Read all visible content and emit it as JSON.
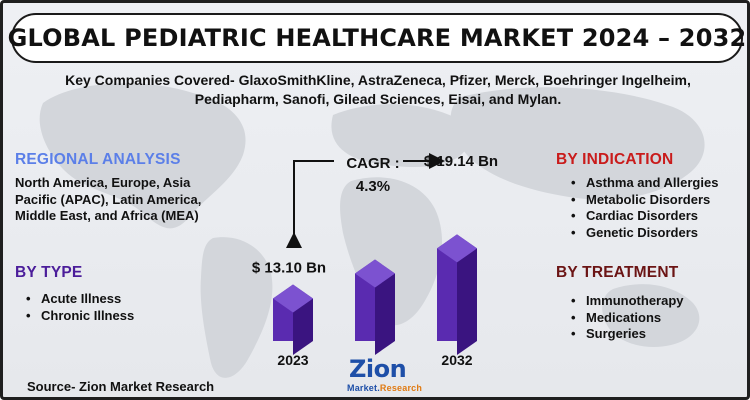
{
  "title": "GLOBAL PEDIATRIC HEALTHCARE MARKET 2024 – 2032",
  "companies": "Key Companies Covered- GlaxoSmithKline, AstraZeneca, Pfizer, Merck, Boehringer Ingelheim, Pediapharm, Sanofi, Gilead Sciences, Eisai, and Mylan.",
  "regional": {
    "heading": "REGIONAL ANALYSIS",
    "text": "North America, Europe, Asia Pacific (APAC), Latin America, Middle East, and Africa (MEA)"
  },
  "by_type": {
    "heading": "BY TYPE",
    "items": [
      "Acute Illness",
      "Chronic Illness"
    ]
  },
  "by_indication": {
    "heading": "BY INDICATION",
    "items": [
      "Asthma and Allergies",
      "Metabolic Disorders",
      "Cardiac Disorders",
      "Genetic Disorders"
    ]
  },
  "by_treatment": {
    "heading": "BY TREATMENT",
    "items": [
      "Immunotherapy",
      "Medications",
      "Surgeries"
    ]
  },
  "cagr": {
    "label": "CAGR :",
    "value": "4.3%"
  },
  "source": "Source- Zion Market Research",
  "logo": {
    "main": "Zion",
    "sub_left": "Market.",
    "sub_right": "Research"
  },
  "colors": {
    "bar_front": "#5a2bb0",
    "bar_side": "#3a1480",
    "bar_top": "#7c52d0",
    "regional_heading": "#5b7fe8",
    "indication_heading": "#c91b1b",
    "treatment_heading": "#6b1414",
    "type_heading": "#4b1d9a"
  },
  "chart_data": {
    "type": "bar",
    "categories": [
      "2023",
      "",
      "2032"
    ],
    "values": [
      13.1,
      null,
      19.14
    ],
    "value_labels": [
      "$ 13.10 Bn",
      "",
      "$ 19.14 Bn"
    ],
    "unit": "USD Bn",
    "cagr": "4.3%",
    "grid": false
  }
}
